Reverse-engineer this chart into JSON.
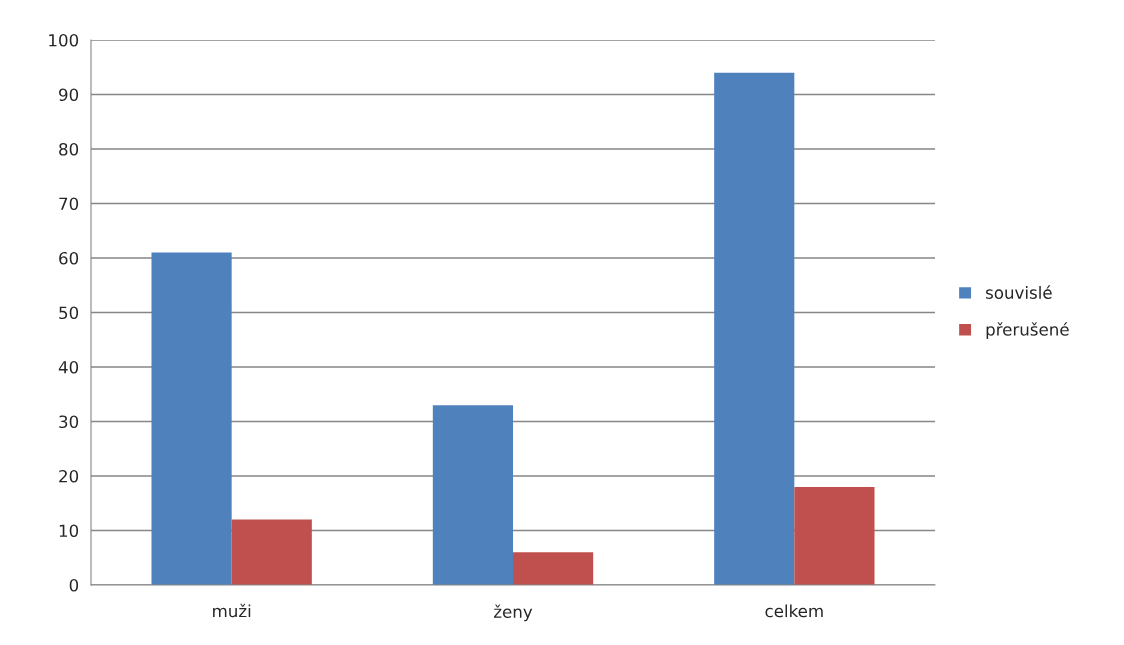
{
  "chart_data": {
    "type": "bar",
    "categories": [
      "muži",
      "ženy",
      "celkem"
    ],
    "series": [
      {
        "name": "souvislé",
        "color": "#4f81bd",
        "values": [
          61,
          33,
          94
        ]
      },
      {
        "name": "přerušené",
        "color": "#c0504d",
        "values": [
          12,
          6,
          18
        ]
      }
    ],
    "ylim": [
      0,
      100
    ],
    "yticks": [
      0,
      10,
      20,
      30,
      40,
      50,
      60,
      70,
      80,
      90,
      100
    ],
    "grid": "y",
    "legend": "right"
  }
}
